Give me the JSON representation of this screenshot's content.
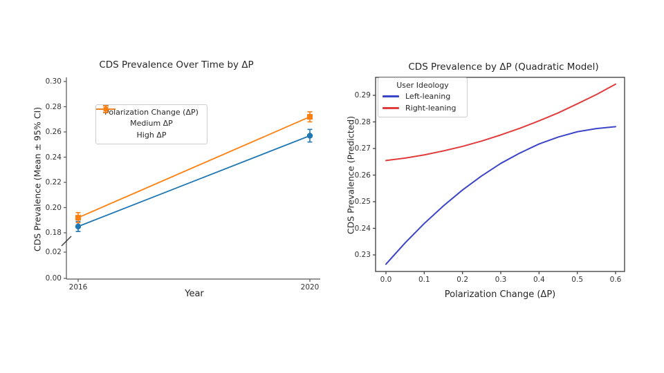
{
  "figure": {
    "background": "#ffffff"
  },
  "charts": {
    "left": {
      "title": "CDS Prevalence Over Time by ΔP",
      "xlabel": "Year",
      "ylabel": "CDS Prevalence (Mean ± 95% CI)",
      "legend_title": "Polarization Change (ΔP)",
      "legend_items": [
        "Medium ΔP",
        "High ΔP"
      ]
    },
    "right": {
      "title": "CDS Prevalence by ΔP (Quadratic Model)",
      "xlabel": "Polarization Change (ΔP)",
      "ylabel": "CDS Prevalence (Predicted)",
      "legend_title": "User Ideology",
      "legend_items": [
        "Left-leaning",
        "Right-leaning"
      ]
    }
  },
  "chart_data": [
    {
      "type": "line",
      "title": "CDS Prevalence Over Time by ΔP",
      "xlabel": "Year",
      "ylabel": "CDS Prevalence (Mean ± 95% CI)",
      "x": [
        2016,
        2020
      ],
      "xtick_labels": [
        "2016",
        "2020"
      ],
      "ytick_labels_upper": [
        "0.30",
        "0.28",
        "0.26",
        "0.24",
        "0.22",
        "0.20",
        "0.18"
      ],
      "ytick_labels_lower": [
        "0.02",
        "0.00"
      ],
      "axis_break_between": [
        0.02,
        0.18
      ],
      "ylim_upper": [
        0.18,
        0.3
      ],
      "ylim_lower": [
        0.0,
        0.02
      ],
      "grid": false,
      "legend_position": "upper left",
      "series": [
        {
          "name": "Medium ΔP",
          "color": "#1f77b4",
          "marker": "circle",
          "values": [
            0.185,
            0.257
          ],
          "ci": [
            0.004,
            0.005
          ]
        },
        {
          "name": "High ΔP",
          "color": "#ff7f0e",
          "marker": "square",
          "values": [
            0.192,
            0.272
          ],
          "ci": [
            0.004,
            0.004
          ]
        }
      ]
    },
    {
      "type": "line",
      "title": "CDS Prevalence by ΔP (Quadratic Model)",
      "xlabel": "Polarization Change (ΔP)",
      "ylabel": "CDS Prevalence (Predicted)",
      "xtick_labels": [
        "0.0",
        "0.1",
        "0.2",
        "0.3",
        "0.4",
        "0.5",
        "0.6"
      ],
      "ytick_labels": [
        "0.23",
        "0.24",
        "0.25",
        "0.26",
        "0.27",
        "0.28",
        "0.29"
      ],
      "xlim": [
        -0.027,
        0.623
      ],
      "ylim": [
        0.2235,
        0.2968
      ],
      "grid": false,
      "legend_position": "upper left",
      "series": [
        {
          "name": "Left-leaning",
          "color": "#3b44c8",
          "x": [
            0.0,
            0.05,
            0.1,
            0.15,
            0.2,
            0.25,
            0.3,
            0.35,
            0.4,
            0.45,
            0.5,
            0.55,
            0.6
          ],
          "values": [
            0.2265,
            0.2345,
            0.2418,
            0.2484,
            0.2544,
            0.2597,
            0.2644,
            0.2683,
            0.2717,
            0.2743,
            0.2763,
            0.2775,
            0.2782
          ]
        },
        {
          "name": "Right-leaning",
          "color": "#e23b3b",
          "x": [
            0.0,
            0.05,
            0.1,
            0.15,
            0.2,
            0.25,
            0.3,
            0.35,
            0.4,
            0.45,
            0.5,
            0.55,
            0.6
          ],
          "values": [
            0.2655,
            0.2664,
            0.2676,
            0.2691,
            0.2708,
            0.2728,
            0.2751,
            0.2776,
            0.2804,
            0.2834,
            0.2868,
            0.2903,
            0.2942
          ]
        }
      ]
    }
  ]
}
